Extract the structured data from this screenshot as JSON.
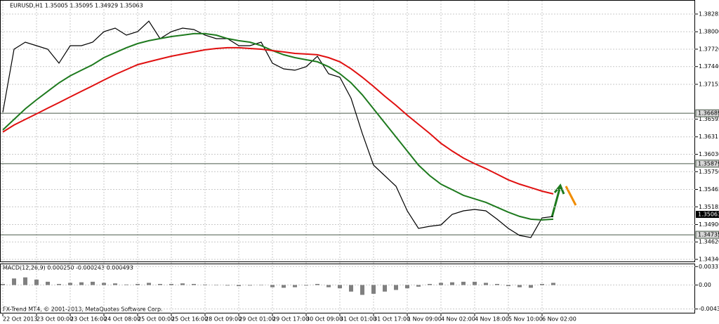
{
  "chart_data": [
    {
      "type": "line",
      "title": "EURUSD,H1 1.35005 1.35095 1.34929 1.35063",
      "categories": [
        "22 Oct 2013",
        null,
        null,
        "23 Oct 00:00",
        null,
        null,
        "23 Oct 16:00",
        null,
        null,
        "24 Oct 08:00",
        null,
        null,
        "25 Oct 00:00",
        null,
        null,
        "25 Oct 16:00",
        null,
        null,
        "28 Oct 09:00",
        null,
        null,
        "29 Oct 01:00",
        null,
        null,
        "29 Oct 17:00",
        null,
        null,
        "30 Oct 09:00",
        null,
        null,
        "31 Oct 01:00",
        null,
        null,
        "31 Oct 17:00",
        null,
        null,
        "1 Nov 09:00",
        null,
        null,
        "4 Nov 02:00",
        null,
        null,
        "4 Nov 18:00",
        null,
        null,
        "5 Nov 10:00",
        null,
        null,
        "6 Nov 02:00",
        null
      ],
      "series": [
        {
          "color": "#000000",
          "values": [
            1.36703,
            1.3772,
            1.37833,
            1.37776,
            1.3772,
            1.37494,
            1.37776,
            1.37776,
            1.37833,
            1.38002,
            1.38059,
            1.37946,
            1.38002,
            1.38172,
            1.37889,
            1.38002,
            1.38059,
            1.38036,
            1.37946,
            1.37889,
            1.37889,
            1.37776,
            1.37776,
            1.37833,
            1.37494,
            1.37403,
            1.37381,
            1.37437,
            1.37607,
            1.37324,
            1.37268,
            1.36929,
            1.36364,
            1.35855,
            1.35685,
            1.35516,
            1.3512,
            1.34837,
            1.34871,
            1.34894,
            1.35063,
            1.3512,
            1.35143,
            1.3512,
            1.34985,
            1.34837,
            1.34724,
            1.34691,
            1.35007,
            1.3503
          ]
        },
        {
          "color": "#1e7a1e",
          "values": [
            1.36421,
            1.3659,
            1.3676,
            1.36906,
            1.37042,
            1.37178,
            1.37291,
            1.37381,
            1.37471,
            1.37584,
            1.37664,
            1.37743,
            1.3781,
            1.37856,
            1.3789,
            1.37923,
            1.37946,
            1.37969,
            1.37969,
            1.37946,
            1.3789,
            1.37856,
            1.37833,
            1.37777,
            1.37697,
            1.3763,
            1.37584,
            1.3755,
            1.37517,
            1.37438,
            1.37325,
            1.37178,
            1.36986,
            1.3676,
            1.36534,
            1.36308,
            1.36082,
            1.35856,
            1.35686,
            1.3555,
            1.3546,
            1.3537,
            1.35313,
            1.35257,
            1.35178,
            1.35098,
            1.35031,
            1.34985,
            1.34974,
            1.34985
          ]
        },
        {
          "color": "#e01010",
          "values": [
            1.36387,
            1.365,
            1.3659,
            1.3668,
            1.36771,
            1.36861,
            1.36952,
            1.37042,
            1.37132,
            1.37223,
            1.37313,
            1.37392,
            1.37471,
            1.37517,
            1.37562,
            1.37607,
            1.37641,
            1.37675,
            1.37709,
            1.37731,
            1.37743,
            1.37743,
            1.37731,
            1.3772,
            1.37697,
            1.37675,
            1.37652,
            1.37641,
            1.3763,
            1.37584,
            1.37517,
            1.37404,
            1.37268,
            1.37121,
            1.36963,
            1.36816,
            1.36658,
            1.36511,
            1.36364,
            1.36206,
            1.36082,
            1.35969,
            1.35878,
            1.35799,
            1.35709,
            1.35618,
            1.3555,
            1.35494,
            1.35437,
            1.35392
          ]
        }
      ],
      "ylim": [
        1.34295,
        1.38488
      ],
      "yticks": [
        1.38285,
        {
          "value": 1.38,
          "label": "1.38000"
        },
        {
          "value": 1.3772,
          "label": "1.37720"
        },
        {
          "value": 1.3744,
          "label": "1.37440"
        },
        1.37155,
        1.36595,
        1.3631,
        {
          "value": 1.3603,
          "label": "1.36030"
        },
        {
          "value": 1.3575,
          "label": "1.35750"
        },
        1.35465,
        1.35185,
        {
          "value": 1.349,
          "label": "1.34900"
        },
        {
          "value": 1.3462,
          "label": "1.34620"
        },
        {
          "value": 1.3434,
          "label": "1.34340"
        }
      ],
      "levels": [
        1.36689,
        1.35879,
        1.34735
      ],
      "current_price": 1.35063,
      "grid": true
    },
    {
      "type": "bar",
      "title": "MACD(12,26,9) 0.000250 -0.000243 0.000493",
      "color": "#808080",
      "values": [
        0.0002,
        0.0012,
        0.0014,
        0.001,
        0.0006,
        0.0002,
        0.0004,
        0.0005,
        0.0006,
        0.0004,
        0.0003,
        0.0001,
        0.0002,
        0.0004,
        0.0002,
        0.0002,
        0.0003,
        0.0002,
        0.0001,
        0,
        -0.0001,
        -0.0002,
        -0.0001,
        0,
        -0.0004,
        -0.0005,
        -0.0004,
        -0.0001,
        0.0002,
        -0.0004,
        -0.0006,
        -0.0012,
        -0.0018,
        -0.0016,
        -0.0012,
        -0.0009,
        -0.0006,
        -0.0003,
        0.0002,
        0.0004,
        0.0005,
        0.0006,
        0.0006,
        0.0004,
        0.0002,
        -0.0002,
        -0.0004,
        -0.0005,
        0.0002,
        0.0004
      ],
      "ylim": [
        -0.0052,
        0.0038
      ],
      "yticks": [
        0.003378,
        {
          "value": 0,
          "label": "0.00"
        },
        -0.004385
      ]
    }
  ],
  "footer": "FX-Trend MT4, © 2001-2013, MetaQuotes Software Corp."
}
